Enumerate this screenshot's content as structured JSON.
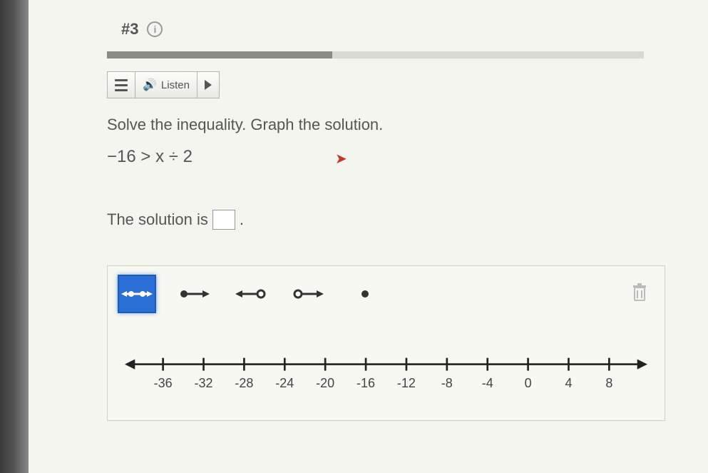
{
  "header": {
    "question_id": "#3",
    "info_symbol": "i"
  },
  "progress": {
    "percent": 42
  },
  "toolbar": {
    "listen_label": "Listen"
  },
  "question": {
    "prompt": "Solve the inequality. Graph the solution.",
    "inequality": "−16 > x ÷ 2",
    "solution_prefix": "The solution is",
    "solution_suffix": "."
  },
  "graph_tools": {
    "tools": [
      {
        "name": "segment-closed-closed-tool",
        "selected": true
      },
      {
        "name": "ray-closed-open-tool",
        "selected": false
      },
      {
        "name": "ray-open-closed-tool",
        "selected": false
      },
      {
        "name": "segment-open-open-tool",
        "selected": false
      },
      {
        "name": "point-tool",
        "selected": false
      }
    ]
  },
  "numberline": {
    "min": -36,
    "max": 8,
    "step": 4,
    "ticks": [
      -36,
      -32,
      -28,
      -24,
      -20,
      -16,
      -12,
      -8,
      -4,
      0,
      4,
      8
    ]
  },
  "colors": {
    "accent": "#2a6fd6",
    "panel_bg": "#f8f8f3",
    "text": "#555555",
    "cursor": "#c0392b"
  }
}
